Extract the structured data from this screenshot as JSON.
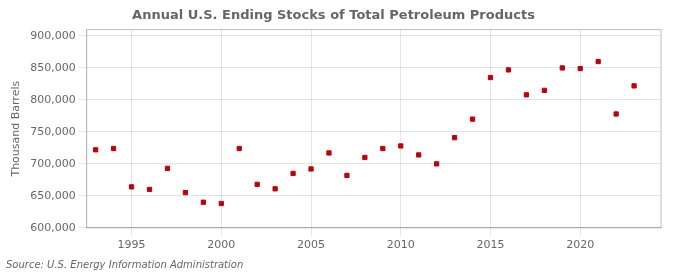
{
  "chart_data": {
    "type": "scatter",
    "title": "Annual U.S. Ending Stocks of Total Petroleum Products",
    "ylabel": "Thousand Barrels",
    "annotation": "Source: U.S. Energy Information Administration",
    "x": [
      1993,
      1994,
      1995,
      1996,
      1997,
      1998,
      1999,
      2000,
      2001,
      2002,
      2003,
      2004,
      2005,
      2006,
      2007,
      2008,
      2009,
      2010,
      2011,
      2012,
      2013,
      2014,
      2015,
      2016,
      2017,
      2018,
      2019,
      2020,
      2021,
      2022,
      2023
    ],
    "values": [
      722000,
      724000,
      664000,
      660000,
      693000,
      655000,
      640000,
      638000,
      724000,
      668000,
      661000,
      685000,
      692000,
      717000,
      682000,
      710000,
      724000,
      728000,
      714000,
      700000,
      741000,
      770000,
      835000,
      847000,
      808000,
      815000,
      850000,
      849000,
      860000,
      778000,
      822000
    ],
    "color": "#C0000A",
    "marker": "square",
    "xlim": [
      1992.5,
      2024.5
    ],
    "xticks": [
      1995,
      2000,
      2005,
      2010,
      2015,
      2020
    ],
    "ylim": [
      600000,
      910000
    ],
    "yticks": [
      {
        "value": 600000,
        "label": "600,000"
      },
      {
        "value": 650000,
        "label": "650,000"
      },
      {
        "value": 700000,
        "label": "700,000"
      },
      {
        "value": 750000,
        "label": "750,000"
      },
      {
        "value": 800000,
        "label": "800,000"
      },
      {
        "value": 850000,
        "label": "850,000"
      },
      {
        "value": 900000,
        "label": "900,000"
      }
    ],
    "grid": true
  }
}
